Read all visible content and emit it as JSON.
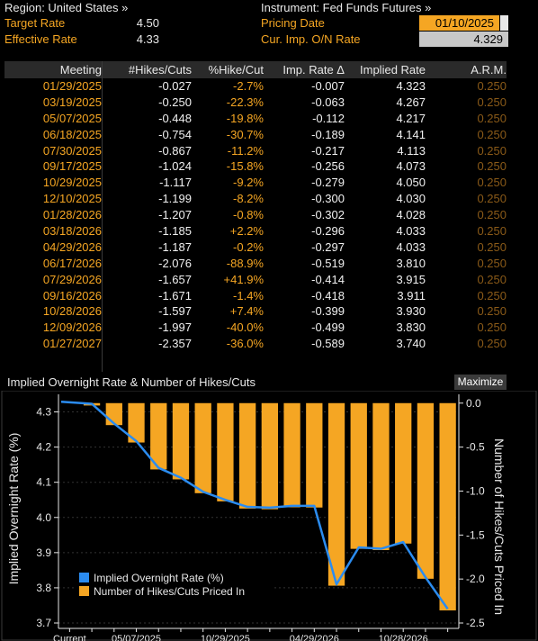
{
  "header": {
    "region_label": "Region: United States »",
    "instrument_label": "Instrument: Fed Funds Futures »",
    "target_label": "Target Rate",
    "target_value": "4.50",
    "effective_label": "Effective Rate",
    "effective_value": "4.33",
    "pricing_date_label": "Pricing Date",
    "pricing_date_value": "01/10/2025",
    "on_rate_label": "Cur. Imp. O/N Rate",
    "on_rate_value": "4.329"
  },
  "table": {
    "columns": [
      "Meeting",
      "#Hikes/Cuts",
      "%Hike/Cut",
      "Imp. Rate Δ",
      "Implied Rate",
      "A.R.M."
    ],
    "rows": [
      [
        "01/29/2025",
        "-0.027",
        "-2.7%",
        "-0.007",
        "4.323",
        "0.250"
      ],
      [
        "03/19/2025",
        "-0.250",
        "-22.3%",
        "-0.063",
        "4.267",
        "0.250"
      ],
      [
        "05/07/2025",
        "-0.448",
        "-19.8%",
        "-0.112",
        "4.217",
        "0.250"
      ],
      [
        "06/18/2025",
        "-0.754",
        "-30.7%",
        "-0.189",
        "4.141",
        "0.250"
      ],
      [
        "07/30/2025",
        "-0.867",
        "-11.2%",
        "-0.217",
        "4.113",
        "0.250"
      ],
      [
        "09/17/2025",
        "-1.024",
        "-15.8%",
        "-0.256",
        "4.073",
        "0.250"
      ],
      [
        "10/29/2025",
        "-1.117",
        "-9.2%",
        "-0.279",
        "4.050",
        "0.250"
      ],
      [
        "12/10/2025",
        "-1.199",
        "-8.2%",
        "-0.300",
        "4.030",
        "0.250"
      ],
      [
        "01/28/2026",
        "-1.207",
        "-0.8%",
        "-0.302",
        "4.028",
        "0.250"
      ],
      [
        "03/18/2026",
        "-1.185",
        "+2.2%",
        "-0.296",
        "4.033",
        "0.250"
      ],
      [
        "04/29/2026",
        "-1.187",
        "-0.2%",
        "-0.297",
        "4.033",
        "0.250"
      ],
      [
        "06/17/2026",
        "-2.076",
        "-88.9%",
        "-0.519",
        "3.810",
        "0.250"
      ],
      [
        "07/29/2026",
        "-1.657",
        "+41.9%",
        "-0.414",
        "3.915",
        "0.250"
      ],
      [
        "09/16/2026",
        "-1.671",
        "-1.4%",
        "-0.418",
        "3.911",
        "0.250"
      ],
      [
        "10/28/2026",
        "-1.597",
        "+7.4%",
        "-0.399",
        "3.930",
        "0.250"
      ],
      [
        "12/09/2026",
        "-1.997",
        "-40.0%",
        "-0.499",
        "3.830",
        "0.250"
      ],
      [
        "01/27/2027",
        "-2.357",
        "-36.0%",
        "-0.589",
        "3.740",
        "0.250"
      ]
    ]
  },
  "chart": {
    "title": "Implied Overnight Rate & Number of Hikes/Cuts",
    "maximize_label": "Maximize"
  },
  "chart_data": {
    "type": "bar+line",
    "categories": [
      "Current",
      "01/29/2025",
      "03/19/2025",
      "05/07/2025",
      "06/18/2025",
      "07/30/2025",
      "09/17/2025",
      "10/29/2025",
      "12/10/2025",
      "01/28/2026",
      "03/18/2026",
      "04/29/2026",
      "06/17/2026",
      "07/29/2026",
      "09/16/2026",
      "10/28/2026",
      "12/09/2026",
      "01/27/2027"
    ],
    "x_tick_labels": [
      {
        "index": 0,
        "label": "Current"
      },
      {
        "index": 3,
        "label": "05/07/2025"
      },
      {
        "index": 7,
        "label": "10/29/2025"
      },
      {
        "index": 11,
        "label": "04/29/2026"
      },
      {
        "index": 15,
        "label": "10/28/2026"
      }
    ],
    "series": [
      {
        "name": "Implied Overnight Rate (%)",
        "type": "line",
        "axis": "left",
        "color": "#2b8cf0",
        "values": [
          4.329,
          4.323,
          4.267,
          4.217,
          4.141,
          4.113,
          4.073,
          4.05,
          4.03,
          4.028,
          4.033,
          4.033,
          3.81,
          3.915,
          3.911,
          3.93,
          3.83,
          3.74
        ]
      },
      {
        "name": "Number of Hikes/Cuts Priced In",
        "type": "bar",
        "axis": "right",
        "color": "#f5a623",
        "values": [
          0,
          -0.027,
          -0.25,
          -0.448,
          -0.754,
          -0.867,
          -1.024,
          -1.117,
          -1.199,
          -1.207,
          -1.185,
          -1.187,
          -2.076,
          -1.657,
          -1.671,
          -1.597,
          -1.997,
          -2.357
        ]
      }
    ],
    "ylabel_left": "Implied Overnight Rate (%)",
    "ylabel_right": "Number of Hikes/Cuts Priced In",
    "ylim_left": [
      3.7,
      4.35
    ],
    "yticks_left": [
      3.7,
      3.8,
      3.9,
      4.0,
      4.1,
      4.2,
      4.3
    ],
    "ylim_right": [
      -2.5,
      0.1
    ],
    "yticks_right": [
      -2.5,
      -2.0,
      -1.5,
      -1.0,
      -0.5,
      0.0
    ],
    "legend_position": "bottom-left"
  }
}
